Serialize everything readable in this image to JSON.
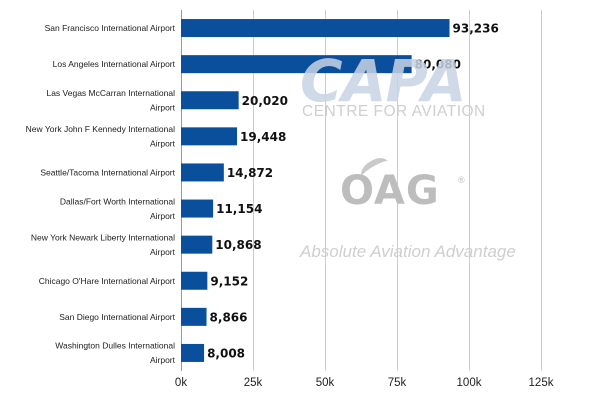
{
  "chart_data": {
    "type": "bar",
    "orientation": "horizontal",
    "categories": [
      "San Francisco International Airport",
      "Los Angeles International Airport",
      "Las Vegas McCarran International Airport",
      "New York John F Kennedy International Airport",
      "Seattle/Tacoma International Airport",
      "Dallas/Fort Worth International Airport",
      "New York Newark Liberty International Airport",
      "Chicago O'Hare International Airport",
      "San Diego International Airport",
      "Washington Dulles International Airport"
    ],
    "values": [
      93236,
      80080,
      20020,
      19448,
      14872,
      11154,
      10868,
      9152,
      8866,
      8008
    ],
    "data_labels": [
      "93,236",
      "80,080",
      "20,020",
      "19,448",
      "14,872",
      "11,154",
      "10,868",
      "9,152",
      "8,866",
      "8,008"
    ],
    "xlim": [
      0,
      125000
    ],
    "x_ticks": [
      0,
      25000,
      50000,
      75000,
      100000,
      125000
    ],
    "x_tick_labels": [
      "0k",
      "25k",
      "50k",
      "75k",
      "100k",
      "125k"
    ],
    "grid": "vertical",
    "legend": "none",
    "bar_color": "#0a4f9c",
    "title": "",
    "xlabel": "",
    "ylabel": ""
  },
  "watermarks": {
    "capa_logo": "CAPA",
    "capa_sub": "CENTRE FOR AVIATION",
    "oag_logo": "OAG",
    "oag_reg": "®",
    "oag_tagline": "Absolute Aviation Advantage"
  }
}
